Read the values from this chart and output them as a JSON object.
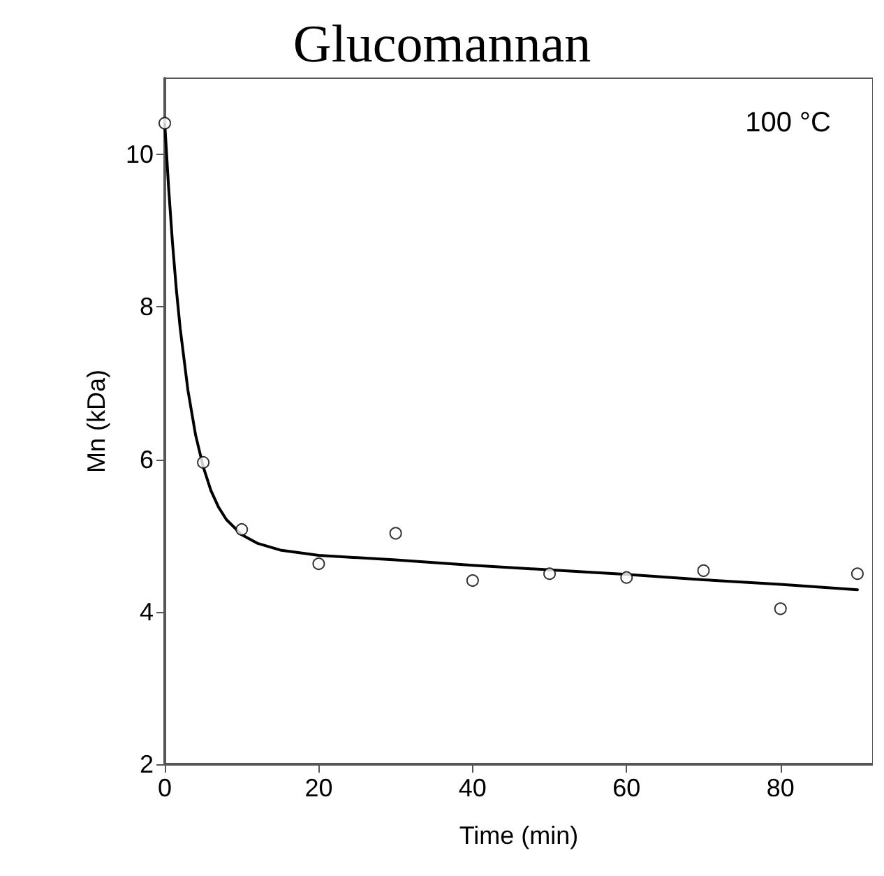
{
  "chart_data": {
    "type": "scatter",
    "title": "Glucomannan",
    "xlabel": "Time (min)",
    "ylabel": "Mn (kDa)",
    "annotations": [
      "100 °C"
    ],
    "xlim": [
      0,
      92
    ],
    "xticks": [
      0,
      20,
      40,
      60,
      80
    ],
    "ylim": [
      2,
      11
    ],
    "yticks": [
      2,
      4,
      6,
      8,
      10
    ],
    "grid": false,
    "series": [
      {
        "marker": "circle",
        "color": "#000000",
        "x": [
          0,
          5,
          10,
          20,
          30,
          40,
          50,
          60,
          70,
          80,
          90
        ],
        "values": [
          10.41,
          5.96,
          5.08,
          4.63,
          5.03,
          4.41,
          4.5,
          4.45,
          4.54,
          4.04,
          4.5
        ]
      },
      {
        "type": "line",
        "marker": "none",
        "line_style": "solid",
        "color": "#000000",
        "x": [
          0,
          0.5,
          1,
          1.5,
          2,
          3,
          4,
          5,
          6,
          7,
          8,
          10,
          12,
          15,
          20,
          30,
          40,
          50,
          60,
          70,
          80,
          90
        ],
        "values": [
          10.4,
          9.56,
          8.84,
          8.23,
          7.72,
          6.91,
          6.32,
          5.9,
          5.59,
          5.37,
          5.21,
          5.01,
          4.9,
          4.81,
          4.74,
          4.68,
          4.61,
          4.55,
          4.49,
          4.42,
          4.36,
          4.29
        ]
      }
    ]
  }
}
